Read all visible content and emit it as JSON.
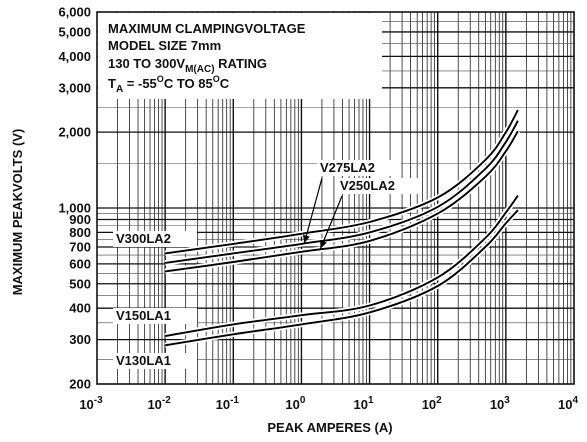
{
  "chart_data": {
    "type": "line",
    "title": "",
    "xlabel": "PEAK AMPERES (A)",
    "ylabel": "MAXIMUM PEAKVOLTS (V)",
    "xscale": "log",
    "yscale": "log",
    "xlim": [
      0.001,
      10000
    ],
    "ylim": [
      200,
      6000
    ],
    "grid": true,
    "x_tick_labels": [
      {
        "base": "10",
        "exp": "-3"
      },
      {
        "base": "10",
        "exp": "-2"
      },
      {
        "base": "10",
        "exp": "-1"
      },
      {
        "base": "10",
        "exp": "0"
      },
      {
        "base": "10",
        "exp": "1"
      },
      {
        "base": "10",
        "exp": "2"
      },
      {
        "base": "10",
        "exp": "3"
      },
      {
        "base": "10",
        "exp": "4"
      }
    ],
    "y_ticks": [
      {
        "value": 200,
        "label": "200"
      },
      {
        "value": 300,
        "label": "300"
      },
      {
        "value": 400,
        "label": "400"
      },
      {
        "value": 500,
        "label": "500"
      },
      {
        "value": 600,
        "label": "600"
      },
      {
        "value": 700,
        "label": "700"
      },
      {
        "value": 800,
        "label": "800"
      },
      {
        "value": 900,
        "label": "900"
      },
      {
        "value": 1000,
        "label": "1,000"
      },
      {
        "value": 2000,
        "label": "2,000"
      },
      {
        "value": 3000,
        "label": "3,000"
      },
      {
        "value": 4000,
        "label": "4,000"
      },
      {
        "value": 5000,
        "label": "5,000"
      },
      {
        "value": 6000,
        "label": "6,000"
      }
    ],
    "annotation": {
      "line1": "MAXIMUM CLAMPINGVOLTAGE",
      "line2": "MODEL SIZE 7mm",
      "line3_main": "130 TO 300V",
      "line3_sub": "M(AC)",
      "line3_tail": " RATING",
      "line4_t": "T",
      "line4_t_sub": "A",
      "line4_a": " = -55",
      "line4_deg1": "O",
      "line4_b": "C TO 85",
      "line4_deg2": "O",
      "line4_c": "C"
    },
    "series": [
      {
        "name": "V300LA2",
        "points": [
          [
            0.01,
            660
          ],
          [
            0.1,
            720
          ],
          [
            1,
            790
          ],
          [
            10,
            880
          ],
          [
            100,
            1100
          ],
          [
            500,
            1550
          ],
          [
            1000,
            2000
          ],
          [
            1500,
            2450
          ]
        ]
      },
      {
        "name": "V275LA2",
        "points": [
          [
            0.01,
            605
          ],
          [
            0.1,
            660
          ],
          [
            1,
            720
          ],
          [
            10,
            800
          ],
          [
            100,
            1010
          ],
          [
            500,
            1430
          ],
          [
            1000,
            1830
          ],
          [
            1500,
            2220
          ]
        ]
      },
      {
        "name": "V250LA2",
        "points": [
          [
            0.01,
            560
          ],
          [
            0.1,
            610
          ],
          [
            1,
            670
          ],
          [
            10,
            740
          ],
          [
            100,
            950
          ],
          [
            500,
            1330
          ],
          [
            1000,
            1680
          ],
          [
            1500,
            2020
          ]
        ]
      },
      {
        "name": "V150LA1",
        "points": [
          [
            0.01,
            310
          ],
          [
            0.1,
            345
          ],
          [
            1,
            375
          ],
          [
            10,
            410
          ],
          [
            100,
            530
          ],
          [
            500,
            760
          ],
          [
            1000,
            960
          ],
          [
            1500,
            1120
          ]
        ]
      },
      {
        "name": "V130LA1",
        "points": [
          [
            0.01,
            285
          ],
          [
            0.1,
            315
          ],
          [
            1,
            345
          ],
          [
            10,
            385
          ],
          [
            100,
            490
          ],
          [
            500,
            700
          ],
          [
            1000,
            870
          ],
          [
            1500,
            980
          ]
        ]
      }
    ]
  }
}
